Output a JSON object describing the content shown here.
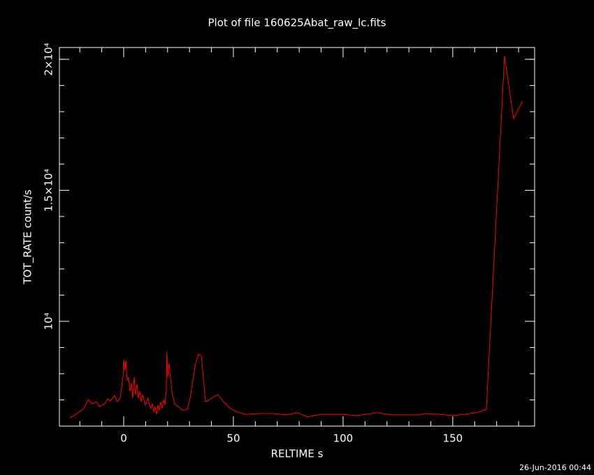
{
  "chart_data": {
    "type": "line",
    "title": "Plot of file 160625Abat_raw_lc.fits",
    "xlabel": "RELTIME  s",
    "ylabel": "TOT_RATE  count/s",
    "footer": "26-Jun-2016 00:44",
    "xlim": [
      -29.3,
      187.3
    ],
    "ylim": [
      6000,
      20450
    ],
    "xticks": [
      0,
      50,
      100,
      150
    ],
    "xminorticks": [
      -20,
      -10,
      10,
      20,
      30,
      40,
      60,
      70,
      80,
      90,
      110,
      120,
      130,
      140,
      160,
      170,
      180
    ],
    "yticks": [
      {
        "value": 10000,
        "label": "10⁴"
      },
      {
        "value": 15000,
        "label": "1.5×10⁴"
      },
      {
        "value": 20000,
        "label": "2×10⁴"
      }
    ],
    "yminorticks": [
      7000,
      8000,
      9000,
      11000,
      12000,
      13000,
      14000,
      16000,
      17000,
      18000,
      19000,
      20000
    ],
    "series": [
      {
        "color": "#ff0000",
        "x": [
          -24.5,
          -22.6,
          -18.2,
          -16.2,
          -14.3,
          -12.4,
          -11.1,
          -8.6,
          -7.3,
          -6.1,
          -4.1,
          -2.9,
          -1.6,
          -0.3,
          0.0,
          0.6,
          1.0,
          1.6,
          2.2,
          2.9,
          3.5,
          4.1,
          4.8,
          5.4,
          6.1,
          6.7,
          7.3,
          8.0,
          8.6,
          9.2,
          9.9,
          10.5,
          11.1,
          11.8,
          12.4,
          13.1,
          13.7,
          14.3,
          15.0,
          15.6,
          16.2,
          16.9,
          17.5,
          18.2,
          18.8,
          19.4,
          19.7,
          20.1,
          20.7,
          21.3,
          22.0,
          23.2,
          25.2,
          27.1,
          29.0,
          30.3,
          31.5,
          32.8,
          34.1,
          35.4,
          36.0,
          37.3,
          39.2,
          41.1,
          43.0,
          45.5,
          48.7,
          51.9,
          55.7,
          61.5,
          67.8,
          74.2,
          79.3,
          83.8,
          90.1,
          99.7,
          106.1,
          115.6,
          122.0,
          134.7,
          137.3,
          144.3,
          150.0,
          155.4,
          161.8,
          165.3,
          173.6,
          177.7,
          181.8
        ],
        "values": [
          6320,
          6400,
          6670,
          7010,
          6850,
          6930,
          6750,
          6850,
          7040,
          6960,
          7170,
          6930,
          7070,
          7870,
          8530,
          8130,
          8510,
          7730,
          7870,
          7330,
          7650,
          7070,
          7870,
          7200,
          7600,
          7070,
          7330,
          6930,
          7200,
          7010,
          6800,
          6930,
          7070,
          6800,
          6670,
          6850,
          6530,
          6750,
          6450,
          6800,
          6590,
          6930,
          6670,
          7010,
          6800,
          7330,
          8850,
          7870,
          8400,
          7870,
          7330,
          6850,
          6720,
          6590,
          6640,
          7070,
          7730,
          8400,
          8750,
          8670,
          8130,
          6930,
          7010,
          7120,
          7200,
          6930,
          6670,
          6530,
          6450,
          6480,
          6480,
          6430,
          6510,
          6350,
          6450,
          6450,
          6400,
          6510,
          6430,
          6430,
          6480,
          6450,
          6400,
          6450,
          6530,
          6640,
          20130,
          17730,
          18400
        ]
      }
    ]
  }
}
